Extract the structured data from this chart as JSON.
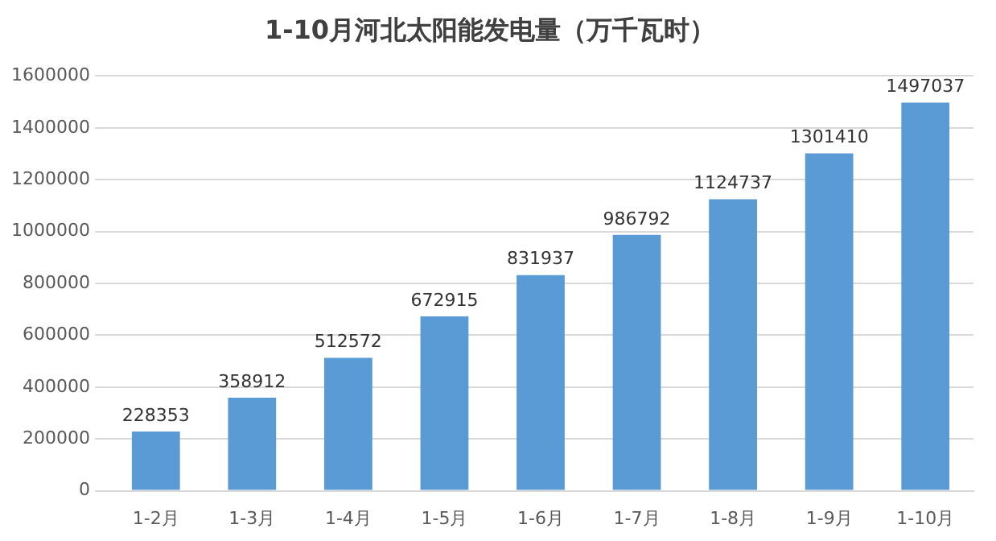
{
  "chart_data": {
    "type": "bar",
    "title": "1-10月河北太阳能发电量（万千瓦时）",
    "categories": [
      "1-2月",
      "1-3月",
      "1-4月",
      "1-5月",
      "1-6月",
      "1-7月",
      "1-8月",
      "1-9月",
      "1-10月"
    ],
    "values": [
      228353,
      358912,
      512572,
      672915,
      831937,
      986792,
      1124737,
      1301410,
      1497037
    ],
    "color": "#5b9bd5",
    "ylim": [
      0,
      1600000
    ],
    "yticks": [
      0,
      200000,
      400000,
      600000,
      800000,
      1000000,
      1200000,
      1400000,
      1600000
    ],
    "grid": "y",
    "data_labels": true
  }
}
